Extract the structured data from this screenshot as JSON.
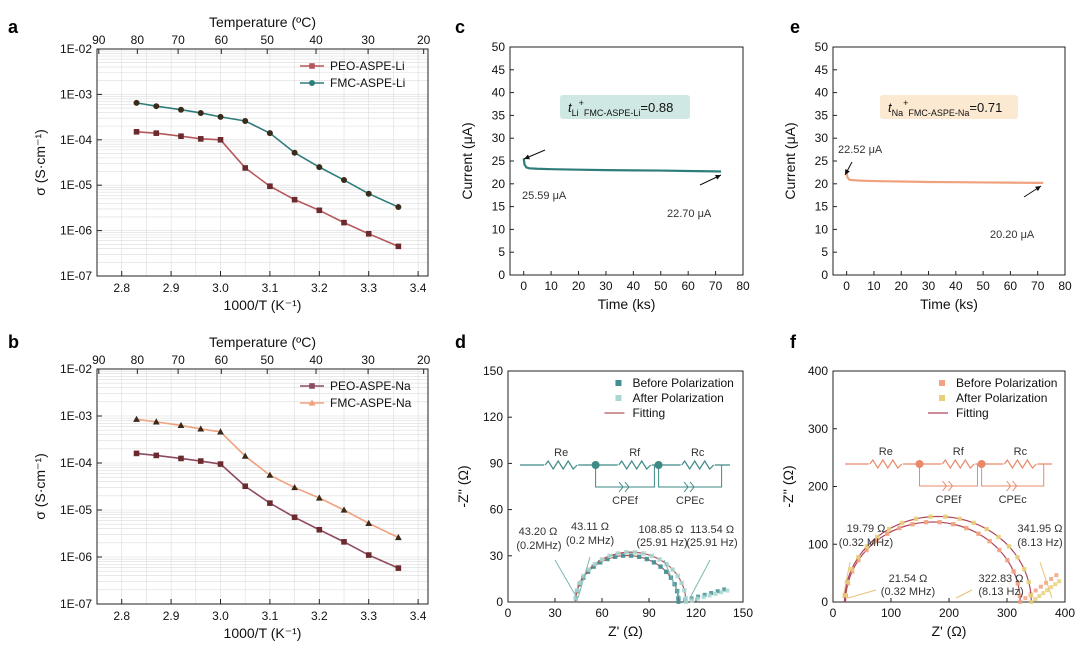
{
  "panel_labels": [
    "a",
    "b",
    "c",
    "d",
    "e",
    "f"
  ],
  "colors": {
    "peo_li": "#b5585b",
    "fmc_li": "#2f7d7b",
    "peo_na": "#8e4a5e",
    "fmc_na": "#f0a17d",
    "li_current": "#2f7d7b",
    "na_current": "#f0a17d",
    "eis_li_before": "#3f8f93",
    "eis_li_after": "#a9d6d2",
    "eis_na_before": "#f2a27f",
    "eis_na_after": "#e8d07a",
    "fit_li": "#b5585b",
    "fit_na": "#b0455a",
    "tbox_li": "#cfe8e4",
    "tbox_na": "#fbe9d2"
  },
  "chart_data": [
    {
      "id": "a",
      "type": "line",
      "xlabel": "1000/T (K⁻¹)",
      "ylabel": "σ (S·cm⁻¹)",
      "xlim": [
        2.75,
        3.42
      ],
      "ylim_log": [
        -7,
        -2
      ],
      "xticks": [
        "2.8",
        "2.9",
        "3.0",
        "3.1",
        "3.2",
        "3.3",
        "3.4"
      ],
      "yticks": [
        "1E-07",
        "1E-06",
        "1E-05",
        "1E-04",
        "1E-03",
        "1E-02"
      ],
      "top_axis": {
        "label": "Temperature (ºC)",
        "ticks": [
          "90",
          "80",
          "70",
          "60",
          "50",
          "40",
          "30",
          "20"
        ]
      },
      "series": [
        {
          "name": "PEO-ASPE-Li",
          "x": [
            2.83,
            2.87,
            2.92,
            2.96,
            3.0,
            3.05,
            3.1,
            3.15,
            3.2,
            3.25,
            3.3,
            3.36
          ],
          "y": [
            0.00015,
            0.00014,
            0.00012,
            0.000105,
            0.0001,
            2.4e-05,
            9.5e-06,
            4.8e-06,
            2.8e-06,
            1.5e-06,
            8.5e-07,
            4.5e-07
          ]
        },
        {
          "name": "FMC-ASPE-Li",
          "x": [
            2.83,
            2.87,
            2.92,
            2.96,
            3.0,
            3.05,
            3.1,
            3.15,
            3.2,
            3.25,
            3.3,
            3.36
          ],
          "y": [
            0.00065,
            0.00055,
            0.00046,
            0.00039,
            0.00032,
            0.00026,
            0.00014,
            5.2e-05,
            2.5e-05,
            1.3e-05,
            6.5e-06,
            3.3e-06
          ]
        }
      ]
    },
    {
      "id": "b",
      "type": "line",
      "xlabel": "1000/T (K⁻¹)",
      "ylabel": "σ (S·cm⁻¹)",
      "xlim": [
        2.75,
        3.42
      ],
      "ylim_log": [
        -7,
        -2
      ],
      "xticks": [
        "2.8",
        "2.9",
        "3.0",
        "3.1",
        "3.2",
        "3.3",
        "3.4"
      ],
      "yticks": [
        "1E-07",
        "1E-06",
        "1E-05",
        "1E-04",
        "1E-03",
        "1E-02"
      ],
      "top_axis": {
        "label": "Temperature (ºC)",
        "ticks": [
          "90",
          "80",
          "70",
          "60",
          "50",
          "40",
          "30",
          "20"
        ]
      },
      "series": [
        {
          "name": "PEO-ASPE-Na",
          "x": [
            2.83,
            2.87,
            2.92,
            2.96,
            3.0,
            3.05,
            3.1,
            3.15,
            3.2,
            3.25,
            3.3,
            3.36
          ],
          "y": [
            0.00016,
            0.000145,
            0.000125,
            0.00011,
            9.5e-05,
            3.2e-05,
            1.4e-05,
            7e-06,
            3.8e-06,
            2.1e-06,
            1.1e-06,
            5.8e-07
          ]
        },
        {
          "name": "FMC-ASPE-Na",
          "x": [
            2.83,
            2.87,
            2.92,
            2.96,
            3.0,
            3.05,
            3.1,
            3.15,
            3.2,
            3.25,
            3.3,
            3.36
          ],
          "y": [
            0.00085,
            0.00075,
            0.00063,
            0.00053,
            0.00046,
            0.00014,
            5.5e-05,
            3e-05,
            1.8e-05,
            1e-05,
            5.2e-06,
            2.6e-06
          ]
        }
      ]
    },
    {
      "id": "c",
      "type": "line",
      "xlabel": "Time (ks)",
      "ylabel": "Current (μA)",
      "xlim": [
        -5,
        80
      ],
      "ylim": [
        0,
        50
      ],
      "xticks": [
        "0",
        "10",
        "20",
        "30",
        "40",
        "50",
        "60",
        "70",
        "80"
      ],
      "yticks": [
        "0",
        "5",
        "10",
        "15",
        "20",
        "25",
        "30",
        "35",
        "40",
        "45",
        "50"
      ],
      "series": [
        {
          "name": "Li current",
          "x": [
            0,
            0.3,
            1,
            2,
            5,
            10,
            20,
            30,
            40,
            50,
            60,
            70,
            72
          ],
          "y": [
            25.6,
            24.2,
            23.6,
            23.4,
            23.3,
            23.2,
            23.1,
            23.0,
            22.95,
            22.9,
            22.8,
            22.72,
            22.7
          ]
        }
      ],
      "annotations": [
        "25.59 μA",
        "22.70 μA"
      ],
      "tnumber": {
        "prefix": "t",
        "sub1": "Li",
        "sup": "+",
        "sub2": "FMC-ASPE-Li",
        "value": "=0.88"
      }
    },
    {
      "id": "e",
      "type": "line",
      "xlabel": "Time (ks)",
      "ylabel": "Current (μA)",
      "xlim": [
        -5,
        80
      ],
      "ylim": [
        0,
        50
      ],
      "xticks": [
        "0",
        "10",
        "20",
        "30",
        "40",
        "50",
        "60",
        "70",
        "80"
      ],
      "yticks": [
        "0",
        "5",
        "10",
        "15",
        "20",
        "25",
        "30",
        "35",
        "40",
        "45",
        "50"
      ],
      "series": [
        {
          "name": "Na current",
          "x": [
            0,
            0.3,
            1,
            2,
            5,
            10,
            20,
            30,
            40,
            50,
            60,
            70,
            72
          ],
          "y": [
            22.5,
            21.4,
            20.9,
            20.8,
            20.7,
            20.6,
            20.5,
            20.4,
            20.35,
            20.3,
            20.25,
            20.2,
            20.2
          ]
        }
      ],
      "annotations": [
        "22.52 μA",
        "20.20 μA"
      ],
      "tnumber": {
        "prefix": "t",
        "sub1": "Na",
        "sup": "+",
        "sub2": "FMC-ASPE-Na",
        "value": "=0.71"
      }
    },
    {
      "id": "d",
      "type": "scatter",
      "xlabel": "Z' (Ω)",
      "ylabel": "-Z'' (Ω)",
      "xlim": [
        0,
        150
      ],
      "ylim": [
        0,
        150
      ],
      "xticks": [
        "0",
        "30",
        "60",
        "90",
        "120",
        "150"
      ],
      "yticks": [
        "0",
        "30",
        "60",
        "90",
        "120",
        "150"
      ],
      "legend": [
        "Before Polarization",
        "After Polarization",
        "Fitting"
      ],
      "circuit": [
        "Re",
        "Rf",
        "Rc",
        "CPEf",
        "CPEc"
      ],
      "semicircles": [
        {
          "name": "Before Polarization",
          "start": 43.2,
          "end": 108.85,
          "tail_to": 138
        },
        {
          "name": "After Polarization",
          "start": 43.11,
          "end": 113.54,
          "tail_to": 140
        }
      ],
      "annotations": [
        "43.20 Ω",
        "(0.2MHz)",
        "43.11 Ω",
        "(0.2 MHz)",
        "108.85 Ω",
        "(25.91 Hz)",
        "113.54 Ω",
        "(25.91 Hz)"
      ]
    },
    {
      "id": "f",
      "type": "scatter",
      "xlabel": "Z' (Ω)",
      "ylabel": "-Z'' (Ω)",
      "xlim": [
        0,
        400
      ],
      "ylim": [
        0,
        400
      ],
      "xticks": [
        "0",
        "100",
        "200",
        "300",
        "400"
      ],
      "yticks": [
        "0",
        "100",
        "200",
        "300",
        "400"
      ],
      "legend": [
        "Before Polarization",
        "After Polarization",
        "Fitting"
      ],
      "circuit": [
        "Re",
        "Rf",
        "Rc",
        "CPEf",
        "CPEc"
      ],
      "semicircles": [
        {
          "name": "Before Polarization",
          "start": 21.54,
          "end": 322.83,
          "tail_to": 385
        },
        {
          "name": "After Polarization",
          "start": 19.79,
          "end": 341.95,
          "tail_to": 390
        }
      ],
      "annotations": [
        "19.79 Ω",
        "(0.32 MHz)",
        "21.54 Ω",
        "(0.32 MHz)",
        "322.83 Ω",
        "(8.13 Hz)",
        "341.95 Ω",
        "(8.13 Hz)"
      ]
    }
  ]
}
